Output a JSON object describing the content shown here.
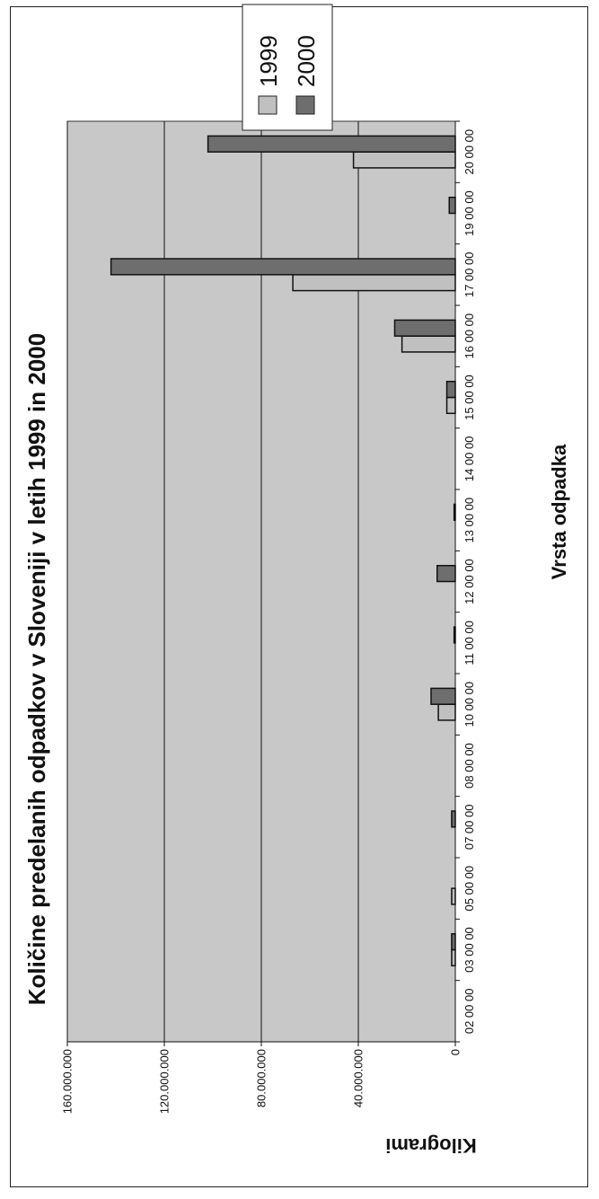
{
  "chart_data": {
    "type": "bar",
    "title": "Količine predelanih odpadkov v Sloveniji v letih 1999 in 2000",
    "xlabel": "Vrsta odpadka",
    "ylabel": "Kilogrami",
    "ylim": [
      0,
      160000000
    ],
    "yticks": [
      "0",
      "40.000.000",
      "80.000.000",
      "120.000.000",
      "160.000.000"
    ],
    "categories": [
      "02 00 00",
      "03 00 00",
      "05 00 00",
      "07 00 00",
      "08 00 00",
      "10 00 00",
      "11 00 00",
      "12 00 00",
      "13 00 00",
      "14 00 00",
      "15 00 00",
      "16 00 00",
      "17 00 00",
      "19 00 00",
      "20 00 00"
    ],
    "series": [
      {
        "name": "1999",
        "color": "#c0c0c0",
        "values": [
          0,
          1500000,
          1500000,
          0,
          0,
          7000000,
          0,
          0,
          0,
          0,
          3500000,
          22000000,
          67000000,
          0,
          42000000
        ]
      },
      {
        "name": "2000",
        "color": "#6e6e6e",
        "values": [
          0,
          1500000,
          0,
          1500000,
          0,
          10000000,
          500000,
          7500000,
          500000,
          0,
          3500000,
          25000000,
          142000000,
          2500000,
          102000000
        ]
      }
    ],
    "grid": true,
    "legend": "top-right",
    "background": "#c8c8c8"
  }
}
